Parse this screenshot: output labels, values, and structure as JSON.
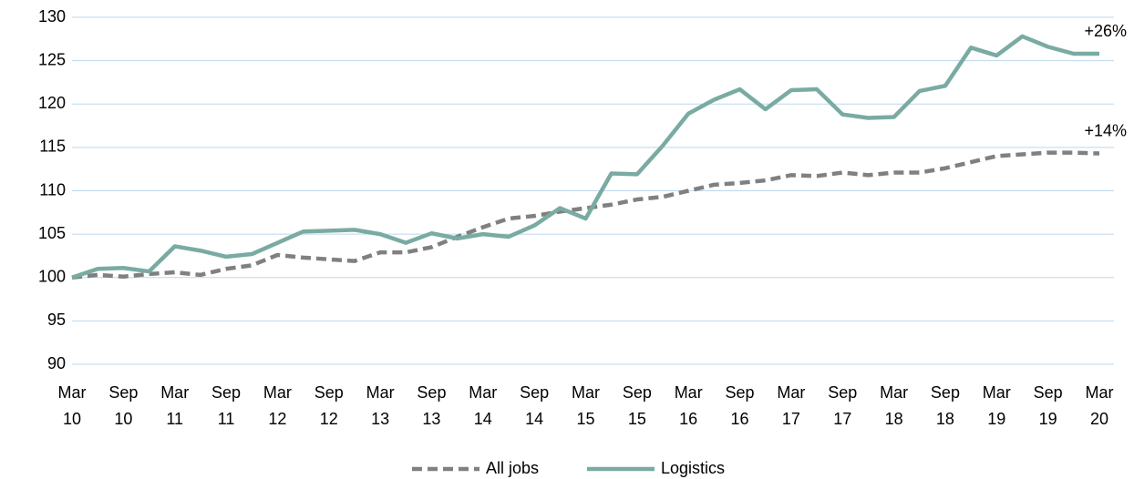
{
  "chart_data": {
    "type": "line",
    "categories": [
      "Mar\n10",
      null,
      "Sep\n10",
      null,
      "Mar\n11",
      null,
      "Sep\n11",
      null,
      "Mar\n12",
      null,
      "Sep\n12",
      null,
      "Mar\n13",
      null,
      "Sep\n13",
      null,
      "Mar\n14",
      null,
      "Sep\n14",
      null,
      "Mar\n15",
      null,
      "Sep\n15",
      null,
      "Mar\n16",
      null,
      "Sep\n16",
      null,
      "Mar\n17",
      null,
      "Sep\n17",
      null,
      "Mar\n18",
      null,
      "Sep\n18",
      null,
      "Mar\n19",
      null,
      "Sep\n19",
      null,
      "Mar\n20"
    ],
    "series": [
      {
        "name": "All jobs",
        "color": "#808080",
        "dashed": true,
        "values": [
          100,
          100.3,
          100.1,
          100.4,
          100.6,
          100.3,
          101.0,
          101.4,
          102.6,
          102.3,
          102.1,
          101.9,
          102.9,
          102.9,
          103.5,
          104.7,
          105.8,
          106.8,
          107.1,
          107.6,
          108.0,
          108.4,
          109.0,
          109.3,
          110.0,
          110.7,
          110.9,
          111.2,
          111.8,
          111.7,
          112.1,
          111.8,
          112.1,
          112.1,
          112.6,
          113.3,
          114.0,
          114.2,
          114.4,
          114.4,
          114.3
        ]
      },
      {
        "name": "Logistics",
        "color": "#79aba2",
        "dashed": false,
        "values": [
          100,
          101.0,
          101.1,
          100.7,
          103.6,
          103.1,
          102.4,
          102.7,
          104.0,
          105.3,
          105.4,
          105.5,
          105.0,
          104.0,
          105.1,
          104.5,
          105.0,
          104.7,
          106.0,
          108.0,
          106.8,
          112.0,
          111.9,
          115.2,
          118.9,
          120.5,
          121.7,
          119.4,
          121.6,
          121.7,
          118.8,
          118.4,
          118.5,
          121.5,
          122.1,
          126.5,
          125.6,
          127.8,
          126.6,
          125.8,
          125.8
        ]
      }
    ],
    "annotations": [
      "+14%",
      "+26%"
    ],
    "ylim": [
      90,
      130
    ],
    "yticks": [
      90,
      95,
      100,
      105,
      110,
      115,
      120,
      125,
      130
    ],
    "grid": true,
    "grid_color": "#bdd7ee",
    "legend": "bottom"
  }
}
